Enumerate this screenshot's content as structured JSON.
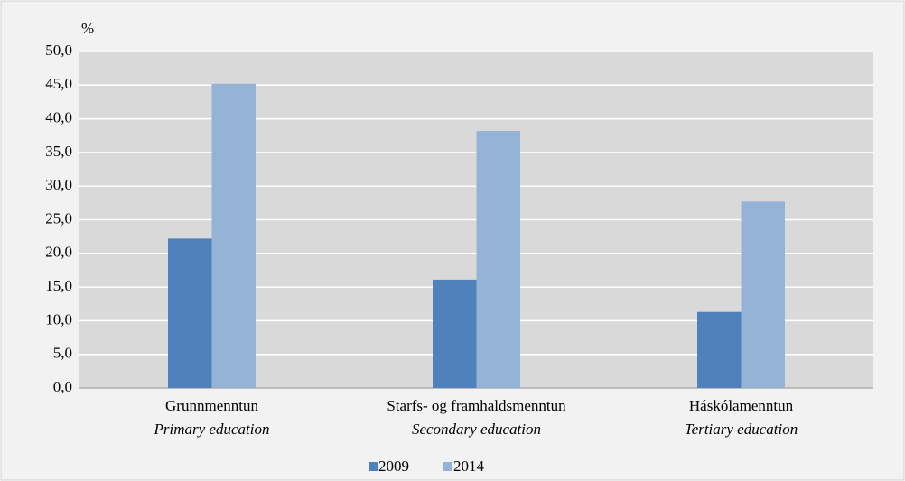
{
  "chart_data": {
    "type": "bar",
    "y_label": "%",
    "categories": [
      "Grunnmenntun",
      "Starfs- og framhaldsmenntun",
      "Háskólamenntun"
    ],
    "category_subtitles": [
      "Primary education",
      "Secondary education",
      "Tertiary education"
    ],
    "series": [
      {
        "name": "2009",
        "color": "#4f81bd",
        "values": [
          22.2,
          16.1,
          11.3
        ]
      },
      {
        "name": "2014",
        "color": "#95b3d7",
        "values": [
          45.2,
          38.2,
          27.7
        ]
      }
    ],
    "ylim": [
      0,
      50
    ],
    "yticks": [
      {
        "value": 0,
        "label": "0,0"
      },
      {
        "value": 5,
        "label": "5,0"
      },
      {
        "value": 10,
        "label": "10,0"
      },
      {
        "value": 15,
        "label": "15,0"
      },
      {
        "value": 20,
        "label": "20,0"
      },
      {
        "value": 25,
        "label": "25,0"
      },
      {
        "value": 30,
        "label": "30,0"
      },
      {
        "value": 35,
        "label": "35,0"
      },
      {
        "value": 40,
        "label": "40,0"
      },
      {
        "value": 45,
        "label": "45,0"
      },
      {
        "value": 50,
        "label": "50,0"
      }
    ],
    "grid": true,
    "legend": "bottom"
  }
}
